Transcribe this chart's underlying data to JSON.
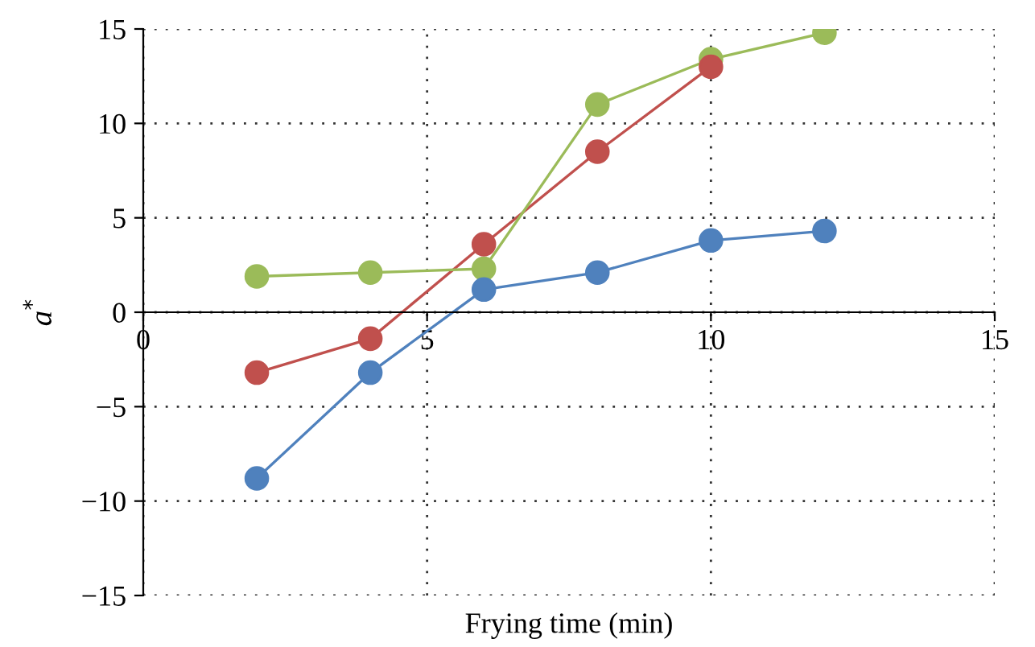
{
  "chart_data": {
    "type": "line",
    "xlabel": "Frying time (min)",
    "ylabel": "a$^{*}$",
    "x": [
      2,
      4,
      6,
      8,
      10,
      12
    ],
    "series": [
      {
        "color": "#4f81bd",
        "values": [
          -8.8,
          -3.2,
          1.2,
          2.1,
          3.8,
          4.3
        ]
      },
      {
        "color": "#c0504d",
        "values": [
          -3.2,
          -1.4,
          3.6,
          8.5,
          13.0,
          null
        ]
      },
      {
        "color": "#9bbb59",
        "values": [
          1.9,
          2.1,
          2.3,
          11.0,
          13.4,
          14.8
        ]
      }
    ],
    "xlim": [
      0,
      15
    ],
    "ylim": [
      -15,
      15
    ],
    "xticks": [
      0,
      5,
      10,
      15
    ],
    "yticks": [
      {
        "value": -15,
        "label": "−15"
      },
      {
        "value": -10,
        "label": "−10"
      },
      {
        "value": -5,
        "label": "−5"
      },
      0,
      5,
      10,
      15
    ],
    "grid": true,
    "marker": "circle",
    "line_style": "solid",
    "legend": false
  }
}
